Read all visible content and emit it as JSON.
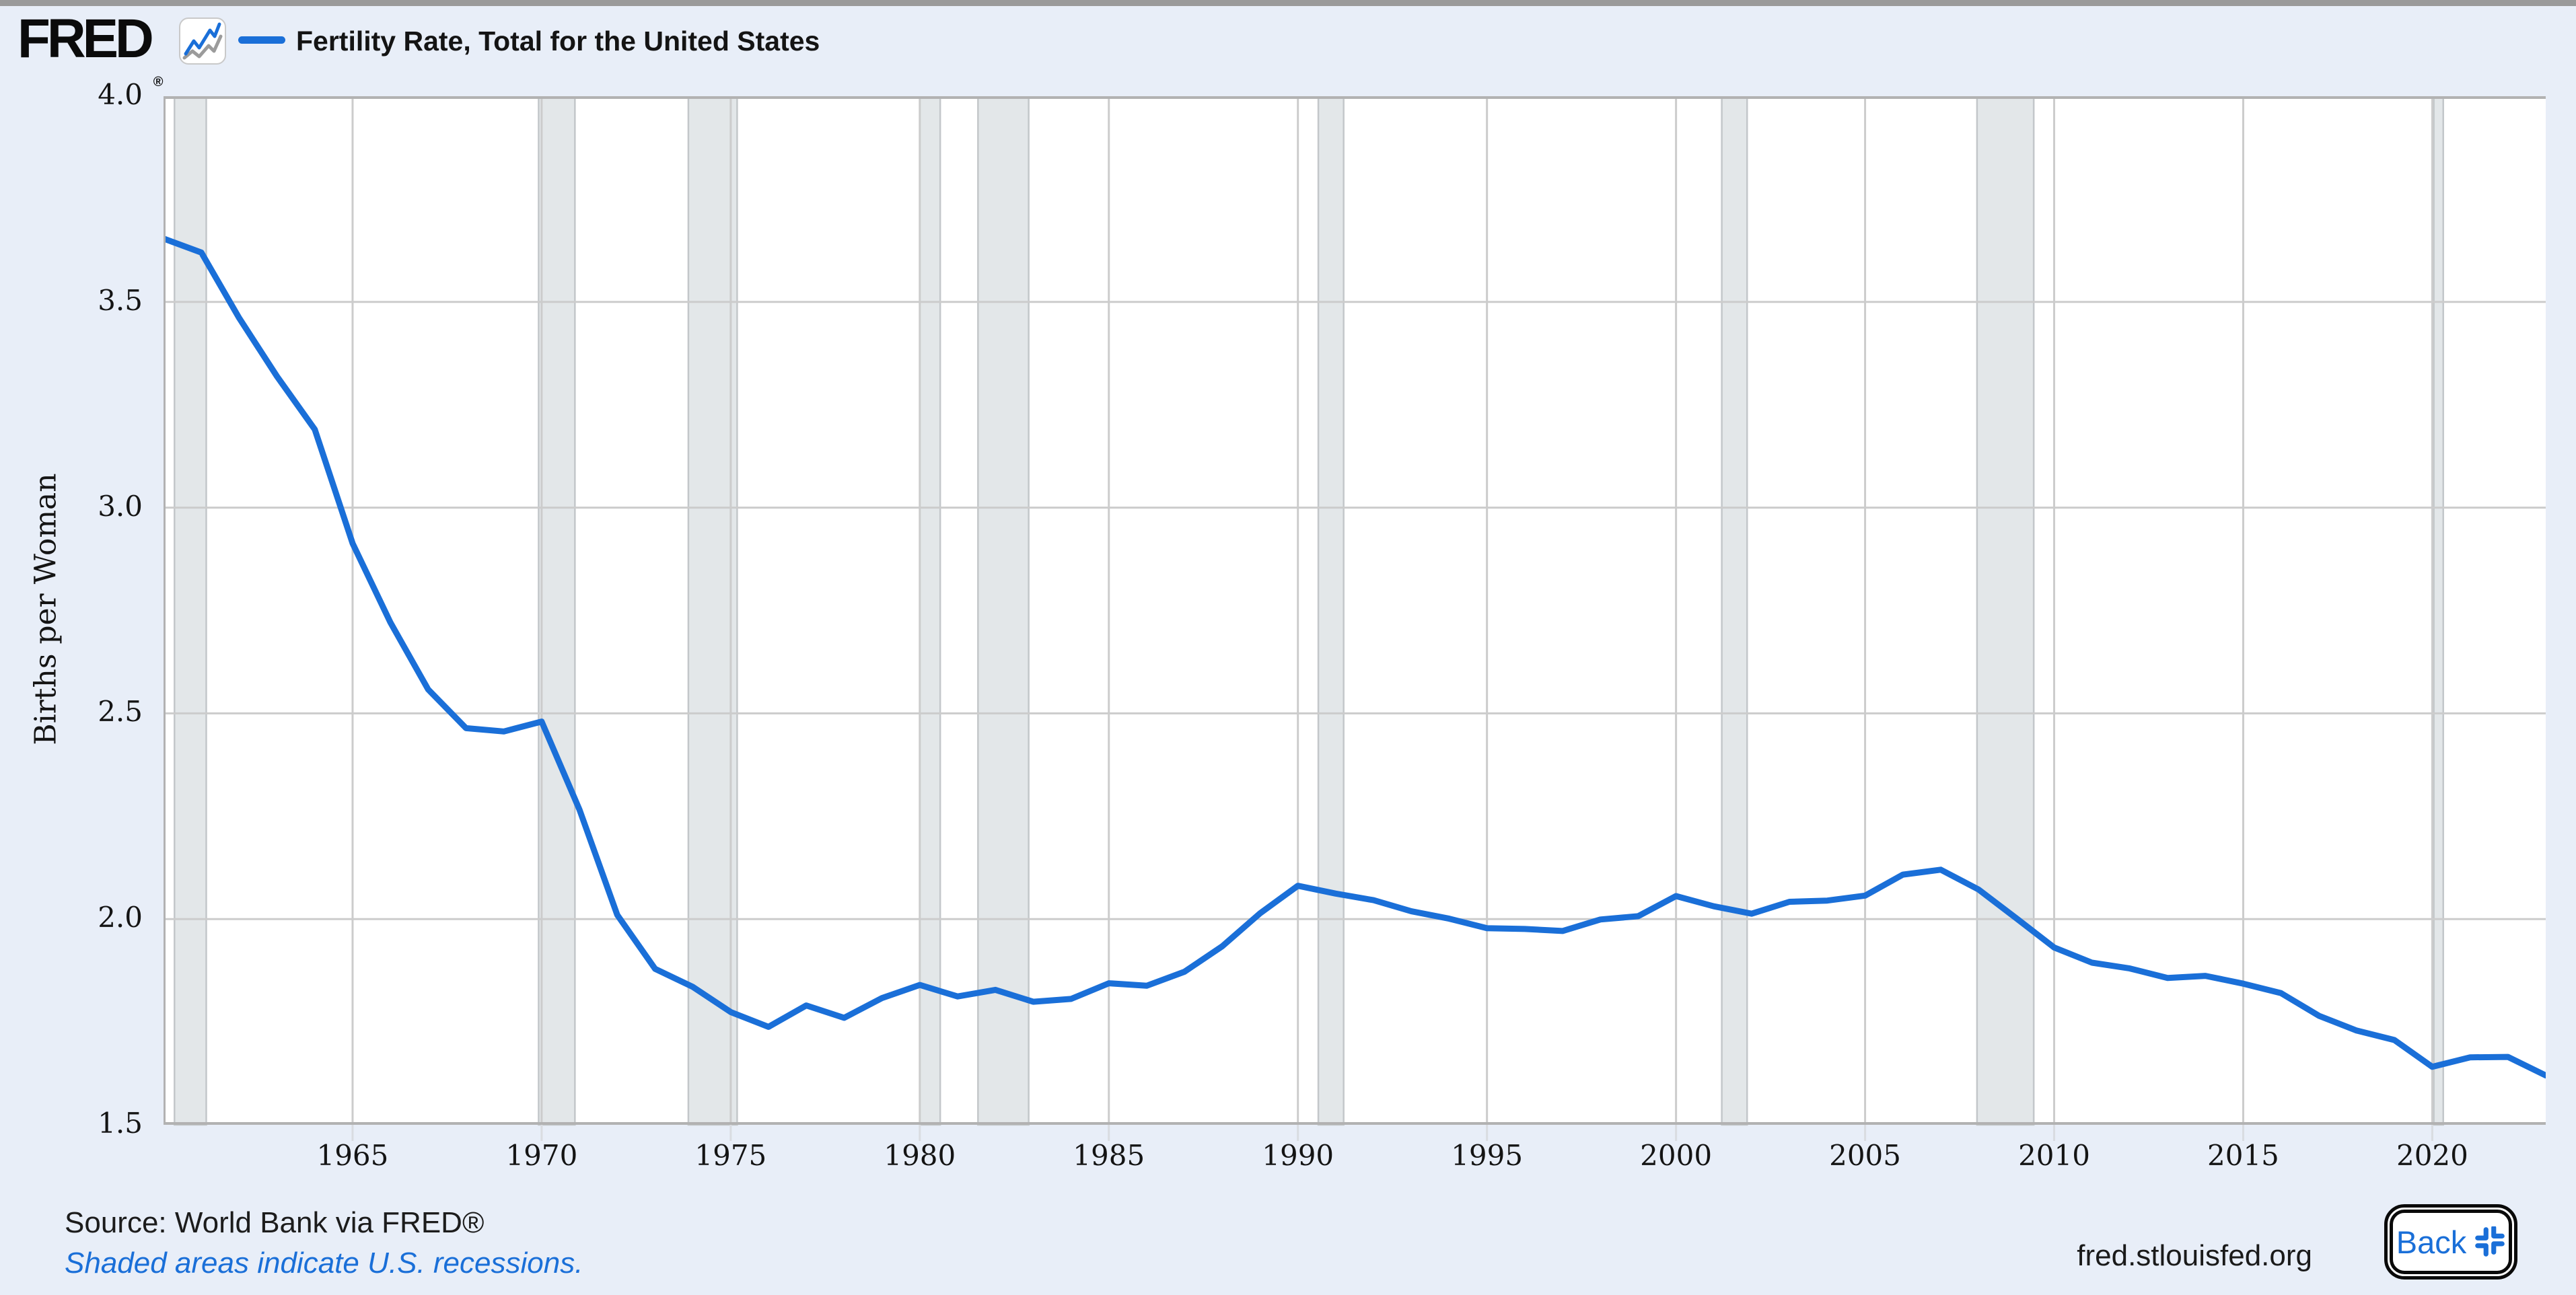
{
  "header": {
    "logo_text": "FRED",
    "logo_registered": "®",
    "legend_label": "Fertility Rate, Total for the United States"
  },
  "footer": {
    "source": "Source: World Bank via FRED®",
    "recession_note": "Shaded areas indicate U.S. recessions.",
    "site": "fred.stlouisfed.org",
    "back_label": "Back"
  },
  "colors": {
    "accent_blue": "#1a6fd8",
    "background": "#e8eef8",
    "plot_background": "#ffffff",
    "gridline": "#cccccc",
    "axis_border": "#b2b2b2",
    "recession_fill": "#e3e7e9",
    "recession_edge": "#c3c7ca",
    "tick_mark": "#d9dce1",
    "text_dark": "#141414"
  },
  "chart_data": {
    "type": "line",
    "title": "Fertility Rate, Total for the United States",
    "xlabel": "",
    "ylabel": "Births per Woman",
    "xlim": [
      1960,
      2023
    ],
    "ylim": [
      1.5,
      4.0
    ],
    "grid": true,
    "legend_position": "top-left-header",
    "series_name": "Fertility Rate, Total for the United States",
    "years": [
      1960,
      1961,
      1962,
      1963,
      1964,
      1965,
      1966,
      1967,
      1968,
      1969,
      1970,
      1971,
      1972,
      1973,
      1974,
      1975,
      1976,
      1977,
      1978,
      1979,
      1980,
      1981,
      1982,
      1983,
      1984,
      1985,
      1986,
      1987,
      1988,
      1989,
      1990,
      1991,
      1992,
      1993,
      1994,
      1995,
      1996,
      1997,
      1998,
      1999,
      2000,
      2001,
      2002,
      2003,
      2004,
      2005,
      2006,
      2007,
      2008,
      2009,
      2010,
      2011,
      2012,
      2013,
      2014,
      2015,
      2016,
      2017,
      2018,
      2019,
      2020,
      2021,
      2022,
      2023
    ],
    "values": [
      3.654,
      3.62,
      3.461,
      3.319,
      3.19,
      2.913,
      2.721,
      2.558,
      2.464,
      2.456,
      2.48,
      2.266,
      2.01,
      1.879,
      1.835,
      1.774,
      1.738,
      1.79,
      1.76,
      1.808,
      1.84,
      1.812,
      1.828,
      1.799,
      1.806,
      1.844,
      1.838,
      1.872,
      1.934,
      2.014,
      2.081,
      2.062,
      2.046,
      2.019,
      2.001,
      1.978,
      1.976,
      1.971,
      1.999,
      2.007,
      2.056,
      2.031,
      2.013,
      2.042,
      2.045,
      2.057,
      2.108,
      2.12,
      2.072,
      2.002,
      1.931,
      1.894,
      1.88,
      1.857,
      1.862,
      1.843,
      1.82,
      1.765,
      1.729,
      1.706,
      1.641,
      1.664,
      1.665,
      1.62
    ],
    "yticks": [
      {
        "label": "4.0",
        "value": 4.0
      },
      {
        "label": "3.5",
        "value": 3.5
      },
      {
        "label": "3.0",
        "value": 3.0
      },
      {
        "label": "2.5",
        "value": 2.5
      },
      {
        "label": "2.0",
        "value": 2.0
      },
      {
        "label": "1.5",
        "value": 1.5
      }
    ],
    "xticks": [
      {
        "label": "1965",
        "year": 1965
      },
      {
        "label": "1970",
        "year": 1970
      },
      {
        "label": "1975",
        "year": 1975
      },
      {
        "label": "1980",
        "year": 1980
      },
      {
        "label": "1985",
        "year": 1985
      },
      {
        "label": "1990",
        "year": 1990
      },
      {
        "label": "1995",
        "year": 1995
      },
      {
        "label": "2000",
        "year": 2000
      },
      {
        "label": "2005",
        "year": 2005
      },
      {
        "label": "2010",
        "year": 2010
      },
      {
        "label": "2015",
        "year": 2015
      },
      {
        "label": "2020",
        "year": 2020
      }
    ],
    "recessions": [
      [
        1960.29,
        1961.13
      ],
      [
        1969.92,
        1970.88
      ],
      [
        1973.88,
        1975.17
      ],
      [
        1980.0,
        1980.54
      ],
      [
        1981.54,
        1982.88
      ],
      [
        1990.54,
        1991.21
      ],
      [
        2001.21,
        2001.88
      ],
      [
        2007.96,
        2009.46
      ],
      [
        2020.04,
        2020.29
      ]
    ]
  }
}
